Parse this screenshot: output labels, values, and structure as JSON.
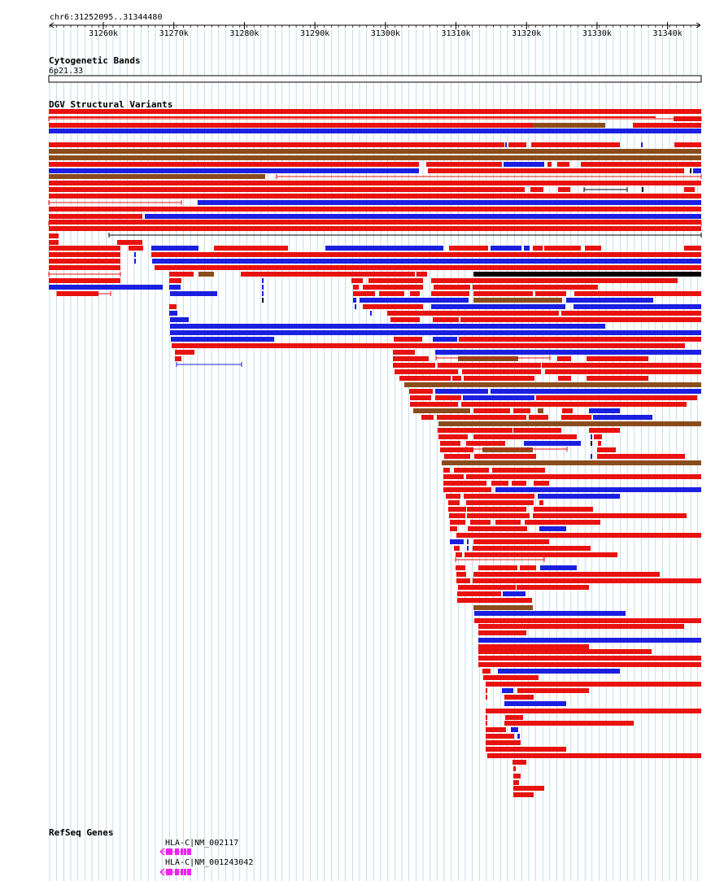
{
  "browser": {
    "region_label": "chr6:31252095..31344480",
    "ruler_ticks": [
      "31260k",
      "31270k",
      "31280k",
      "31290k",
      "31300k",
      "31310k",
      "31320k",
      "31330k",
      "31340k"
    ]
  },
  "tracks": {
    "cytoband": {
      "title": "Cytogenetic Bands",
      "band": "6p21.33"
    },
    "dgv": {
      "title": "DGV Structural Variants"
    },
    "refseq": {
      "title": "RefSeq Genes",
      "genes": [
        {
          "symbol": "HLA-C",
          "accession": "NM_002117",
          "label": "HLA-C|NM_002117",
          "strand": "-"
        },
        {
          "symbol": "HLA-C",
          "accession": "NM_001243042",
          "label": "HLA-C|NM_001243042",
          "strand": "-"
        }
      ]
    }
  },
  "colors": {
    "gain": "#e8120f",
    "loss": "#1b1fe0",
    "gain_loss": "#8b4c1c",
    "inversion": "#000000",
    "gene": "#ee22ee",
    "grid": "#9fc8dc"
  }
}
